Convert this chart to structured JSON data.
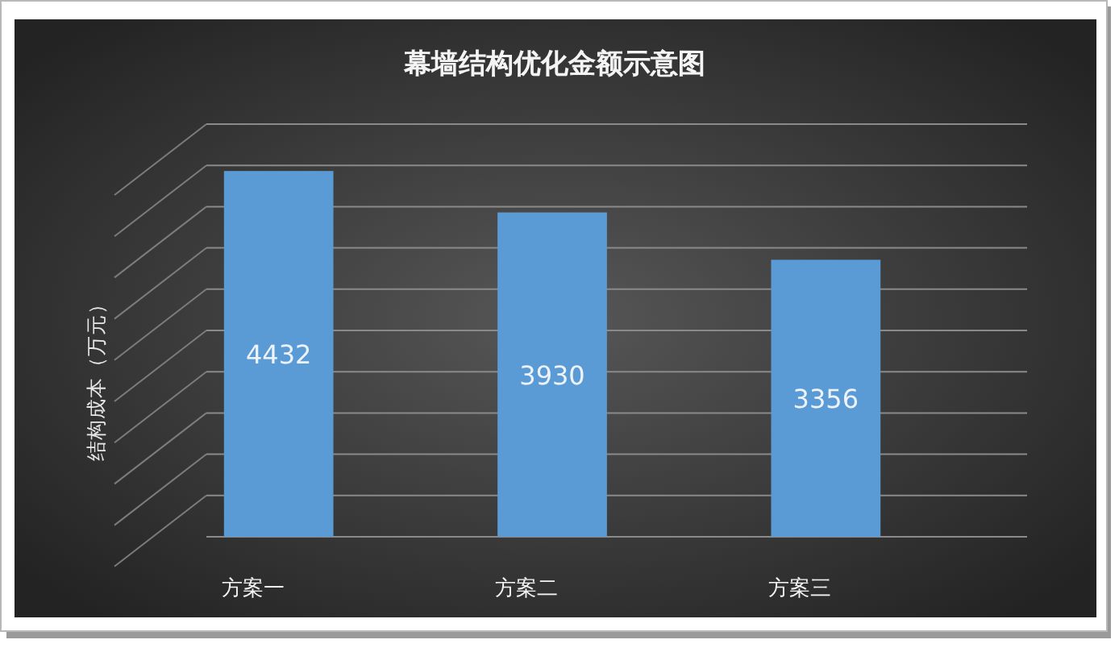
{
  "chart_data": {
    "type": "bar",
    "title": "幕墙结构优化金额示意图",
    "ylabel": "结构成本（万元）",
    "categories": [
      "方案一",
      "方案二",
      "方案三"
    ],
    "values": [
      4432,
      3930,
      3356
    ],
    "color": "#5b9bd5",
    "data_labels": true,
    "ylim": [
      0,
      5000
    ],
    "yticks": [
      {
        "value": 0,
        "label": null
      },
      {
        "value": 500,
        "label": null
      },
      {
        "value": 1000,
        "label": null
      },
      {
        "value": 1500,
        "label": null
      },
      {
        "value": 2000,
        "label": null
      },
      {
        "value": 2500,
        "label": null
      },
      {
        "value": 3000,
        "label": null
      },
      {
        "value": 3500,
        "label": null
      },
      {
        "value": 4000,
        "label": null
      },
      {
        "value": 4500,
        "label": null
      },
      {
        "value": 5000,
        "label": null
      }
    ],
    "grid": "y",
    "tick_labels": "x"
  }
}
